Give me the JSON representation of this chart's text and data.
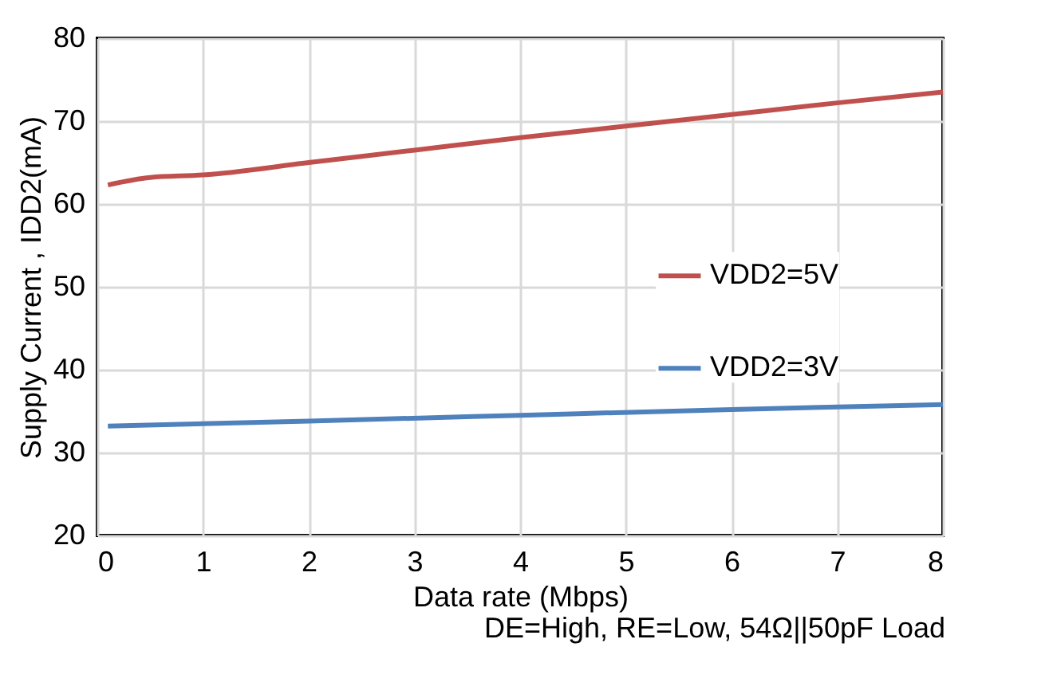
{
  "chart_data": {
    "type": "line",
    "xlabel": "Data rate (Mbps)",
    "ylabel": "Supply Current , IDD2(mA)",
    "annotations": [
      "DE=High, RE=Low, 54Ω||50pF Load"
    ],
    "xlim": [
      0,
      8
    ],
    "xticks": [
      0,
      1,
      2,
      3,
      4,
      5,
      6,
      7,
      8
    ],
    "ylim": [
      20,
      80
    ],
    "yticks": [
      20,
      30,
      40,
      50,
      60,
      70,
      80
    ],
    "grid": true,
    "legend": "right",
    "line_style": "solid",
    "marker": "none",
    "series": [
      {
        "name": "VDD2=5V",
        "color": "#c0504d",
        "x": [
          0.1,
          0.5,
          1,
          2,
          3,
          4,
          5,
          6,
          7,
          8
        ],
        "values": [
          62.3,
          63.2,
          63.5,
          65.0,
          66.5,
          68.0,
          69.4,
          70.8,
          72.2,
          73.5
        ]
      },
      {
        "name": "VDD2=3V",
        "color": "#4f81bd",
        "x": [
          0.1,
          2,
          4,
          6,
          8
        ],
        "values": [
          33.2,
          33.8,
          34.5,
          35.2,
          35.8
        ]
      }
    ]
  }
}
